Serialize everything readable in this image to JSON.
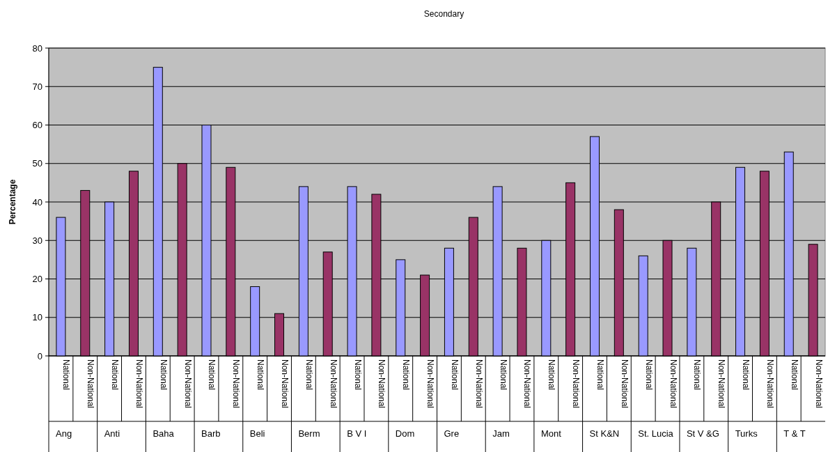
{
  "chart_data": {
    "type": "bar",
    "title": "Secondary",
    "ylabel": "Percentage",
    "categories": [
      "Ang",
      "Anti",
      "Baha",
      "Barb",
      "Beli",
      "Berm",
      "B V I",
      "Dom",
      "Gre",
      "Jam",
      "Mont",
      "St K&N",
      "St. Lucia",
      "St V &G",
      "Turks",
      "T & T"
    ],
    "series": [
      {
        "name": "National",
        "color": "#9999ff",
        "values": [
          36,
          40,
          75,
          60,
          18,
          44,
          44,
          25,
          28,
          44,
          30,
          57,
          26,
          28,
          49,
          53
        ]
      },
      {
        "name": "Non-National",
        "color": "#993366",
        "values": [
          43,
          48,
          50,
          49,
          11,
          27,
          42,
          21,
          36,
          28,
          45,
          38,
          30,
          40,
          48,
          29
        ]
      }
    ],
    "ylim": [
      0,
      80
    ],
    "yticks": [
      0,
      10,
      20,
      30,
      40,
      50,
      60,
      70,
      80
    ],
    "grid": "y"
  }
}
